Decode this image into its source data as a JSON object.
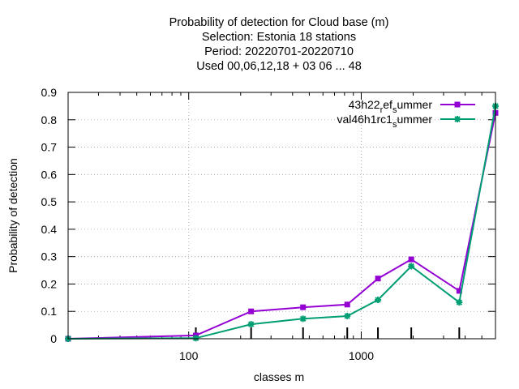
{
  "chart_data": {
    "type": "line",
    "title_lines": [
      "Probability of detection  for Cloud base (m)",
      "Selection: Estonia     18 stations",
      "Period: 20220701-20220710",
      "Used  00,06,12,18  + 03 06 ... 48"
    ],
    "xlabel": "classes m",
    "ylabel": "Probability of detection",
    "x_scale": "log",
    "xlim": [
      20,
      6000
    ],
    "ylim": [
      0,
      0.9
    ],
    "x_ticks": [
      100,
      1000
    ],
    "y_ticks": [
      0,
      0.1,
      0.2,
      0.3,
      0.4,
      0.5,
      0.6,
      0.7,
      0.8,
      0.9
    ],
    "grid": true,
    "legend_position": "top-right",
    "x": [
      20,
      110,
      230,
      460,
      830,
      1250,
      1950,
      3700,
      6000
    ],
    "series": [
      {
        "legend_main": "43h22",
        "legend_sub1": "r",
        "legend_mid": "ef",
        "legend_sub2": "s",
        "legend_tail": "ummer",
        "color": "#9400d3",
        "marker": "square",
        "values": [
          0.0,
          0.012,
          0.1,
          0.115,
          0.125,
          0.22,
          0.29,
          0.175,
          0.825
        ]
      },
      {
        "legend_main": "val46h1rc1",
        "legend_sub1": "",
        "legend_mid": "",
        "legend_sub2": "s",
        "legend_tail": "ummer",
        "color": "#009e73",
        "marker": "star",
        "values": [
          0.0,
          0.002,
          0.053,
          0.073,
          0.083,
          0.142,
          0.265,
          0.133,
          0.85
        ]
      }
    ]
  }
}
